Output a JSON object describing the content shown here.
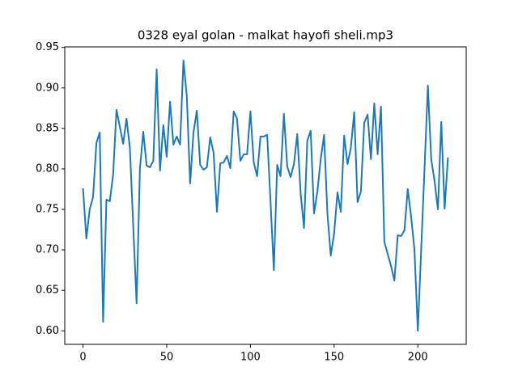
{
  "chart_data": {
    "type": "line",
    "title": "0328 eyal golan - malkat hayofi sheli.mp3",
    "color": "#1f77b4",
    "x": [
      0,
      2,
      4,
      6,
      8,
      10,
      12,
      14,
      16,
      18,
      20,
      22,
      24,
      26,
      28,
      30,
      32,
      34,
      36,
      38,
      40,
      42,
      44,
      46,
      48,
      50,
      52,
      54,
      56,
      58,
      60,
      62,
      64,
      66,
      68,
      70,
      72,
      74,
      76,
      78,
      80,
      82,
      84,
      86,
      88,
      90,
      92,
      94,
      96,
      98,
      100,
      102,
      104,
      106,
      108,
      110,
      112,
      114,
      116,
      118,
      120,
      122,
      124,
      126,
      128,
      130,
      132,
      134,
      136,
      138,
      140,
      142,
      144,
      146,
      148,
      150,
      152,
      154,
      156,
      158,
      160,
      162,
      164,
      166,
      168,
      170,
      172,
      174,
      176,
      178,
      180,
      182,
      184,
      186,
      188,
      190,
      192,
      194,
      196,
      198,
      200,
      202,
      204,
      206,
      208,
      210,
      212,
      214,
      216,
      218
    ],
    "values": [
      0.776,
      0.714,
      0.75,
      0.765,
      0.832,
      0.845,
      0.611,
      0.762,
      0.76,
      0.793,
      0.873,
      0.852,
      0.831,
      0.862,
      0.826,
      0.73,
      0.634,
      0.8,
      0.846,
      0.804,
      0.802,
      0.81,
      0.923,
      0.798,
      0.854,
      0.815,
      0.883,
      0.83,
      0.84,
      0.83,
      0.934,
      0.89,
      0.782,
      0.845,
      0.872,
      0.805,
      0.799,
      0.802,
      0.839,
      0.82,
      0.747,
      0.807,
      0.808,
      0.816,
      0.801,
      0.871,
      0.862,
      0.81,
      0.818,
      0.818,
      0.871,
      0.808,
      0.791,
      0.84,
      0.84,
      0.842,
      0.76,
      0.675,
      0.805,
      0.791,
      0.868,
      0.803,
      0.79,
      0.806,
      0.843,
      0.77,
      0.727,
      0.835,
      0.847,
      0.745,
      0.772,
      0.812,
      0.842,
      0.745,
      0.693,
      0.72,
      0.771,
      0.747,
      0.841,
      0.806,
      0.826,
      0.87,
      0.759,
      0.772,
      0.857,
      0.867,
      0.812,
      0.881,
      0.818,
      0.877,
      0.71,
      0.695,
      0.68,
      0.662,
      0.718,
      0.717,
      0.724,
      0.775,
      0.741,
      0.7,
      0.6,
      0.7,
      0.8,
      0.903,
      0.812,
      0.785,
      0.75,
      0.858,
      0.751,
      0.814
    ],
    "xlim": [
      -10.9,
      228.9
    ],
    "ylim": [
      0.5833,
      0.9507
    ],
    "xticks": [
      0,
      50,
      100,
      150,
      200
    ],
    "yticks": [
      {
        "value": 0.6,
        "label": "0.60"
      },
      {
        "value": 0.65,
        "label": "0.65"
      },
      {
        "value": 0.7,
        "label": "0.70"
      },
      {
        "value": 0.75,
        "label": "0.75"
      },
      {
        "value": 0.8,
        "label": "0.80"
      },
      {
        "value": 0.85,
        "label": "0.85"
      },
      {
        "value": 0.9,
        "label": "0.90"
      },
      {
        "value": 0.95,
        "label": "0.95"
      }
    ]
  }
}
